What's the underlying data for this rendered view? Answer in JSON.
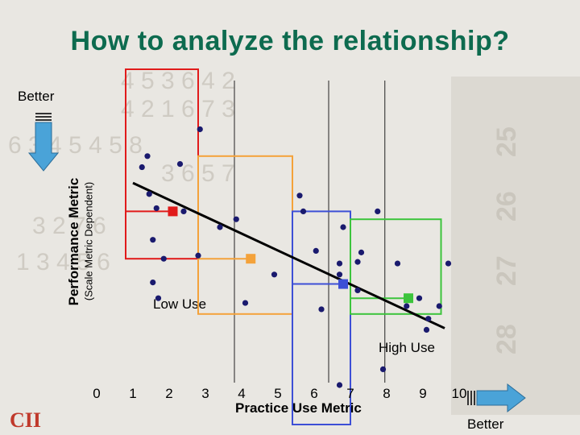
{
  "title": "How to analyze the relationship?",
  "better_top": "Better",
  "better_bottom": "Better",
  "ylabel_main": "Performance Metric",
  "ylabel_sub": "(Scale Metric Dependent)",
  "logo_text": "CII",
  "colors": {
    "title": "#0d6b4f",
    "red": "#e11b1b",
    "orange": "#f4a23a",
    "blue": "#3d4fd6",
    "green": "#3cc43c",
    "arrow": "#4aa3d8",
    "point": "#1a1a6e"
  },
  "chart_data": {
    "type": "scatter",
    "title": "How to analyze the relationship?",
    "xlabel": "Practice Use Metric",
    "ylabel": "Performance Metric (Scale Metric Dependent)",
    "x_ticks": [
      "0",
      "1",
      "2",
      "3",
      "4",
      "5",
      "6",
      "7",
      "8",
      "9",
      "10"
    ],
    "xlim": [
      0,
      10
    ],
    "annotations": {
      "low": "Low Use",
      "high": "High Use"
    },
    "points": [
      [
        1.25,
        0.88
      ],
      [
        1.4,
        0.95
      ],
      [
        1.45,
        0.71
      ],
      [
        1.55,
        0.42
      ],
      [
        1.55,
        0.15
      ],
      [
        1.7,
        0.05
      ],
      [
        1.65,
        0.62
      ],
      [
        1.85,
        0.3
      ],
      [
        2.4,
        0.6
      ],
      [
        2.8,
        0.32
      ],
      [
        2.3,
        0.9
      ],
      [
        2.85,
        1.12
      ],
      [
        3.4,
        0.5
      ],
      [
        3.85,
        0.55
      ],
      [
        4.1,
        0.02
      ],
      [
        4.9,
        0.2
      ],
      [
        5.6,
        0.7
      ],
      [
        5.7,
        0.6
      ],
      [
        6.05,
        0.35
      ],
      [
        6.2,
        -0.02
      ],
      [
        6.7,
        0.2
      ],
      [
        6.7,
        0.27
      ],
      [
        6.8,
        0.5
      ],
      [
        7.2,
        0.1
      ],
      [
        7.3,
        0.34
      ],
      [
        7.75,
        0.6
      ],
      [
        7.2,
        0.28
      ],
      [
        8.3,
        0.27
      ],
      [
        8.55,
        0.0
      ],
      [
        8.9,
        0.05
      ],
      [
        9.15,
        -0.08
      ],
      [
        9.45,
        0.0
      ],
      [
        9.7,
        0.27
      ],
      [
        7.9,
        -0.4
      ],
      [
        6.7,
        -0.5
      ],
      [
        9.1,
        -0.15
      ]
    ],
    "trend_line": {
      "x0": 1.0,
      "y0": 0.78,
      "x1": 9.6,
      "y1": -0.14
    },
    "groups": [
      {
        "name": "red",
        "x_range": [
          0.8,
          2.8
        ],
        "y_range": [
          0.3,
          1.5
        ],
        "mean": [
          2.1,
          0.6
        ],
        "color": "#e11b1b"
      },
      {
        "name": "orange",
        "x_range": [
          2.8,
          5.4
        ],
        "y_range": [
          -0.05,
          0.95
        ],
        "mean": [
          4.25,
          0.3
        ],
        "color": "#f4a23a"
      },
      {
        "name": "blue",
        "x_range": [
          5.4,
          7.0
        ],
        "y_range": [
          -0.75,
          0.6
        ],
        "mean": [
          6.8,
          0.14
        ],
        "color": "#3d4fd6"
      },
      {
        "name": "green",
        "x_range": [
          7.0,
          9.5
        ],
        "y_range": [
          -0.05,
          0.55
        ],
        "mean": [
          8.6,
          0.05
        ],
        "color": "#3cc43c"
      }
    ]
  }
}
